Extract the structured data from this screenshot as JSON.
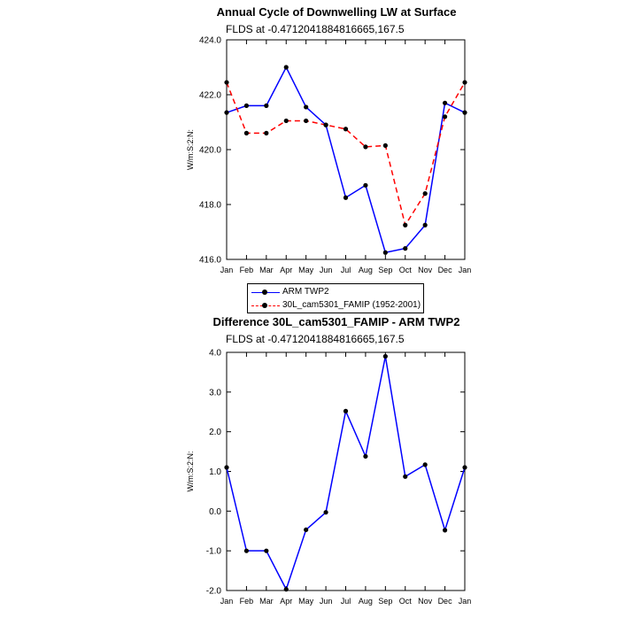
{
  "chart_data": [
    {
      "type": "line",
      "title": "Annual Cycle of Downwelling LW at Surface",
      "subtitle": "FLDS at -0.4712041884816665,167.5",
      "xlabel": "",
      "ylabel": "W/m:S:2:N:",
      "categories": [
        "Jan",
        "Feb",
        "Mar",
        "Apr",
        "May",
        "Jun",
        "Jul",
        "Aug",
        "Sep",
        "Oct",
        "Nov",
        "Dec",
        "Jan"
      ],
      "ylim": [
        416.0,
        424.0
      ],
      "yticks": [
        "416.0",
        "418.0",
        "420.0",
        "422.0",
        "424.0"
      ],
      "grid": false,
      "legend_placement": "bottom",
      "series": [
        {
          "name": "ARM TWP2",
          "color": "#0000ff",
          "style": "solid",
          "values": [
            421.35,
            421.6,
            421.6,
            423.0,
            421.55,
            420.9,
            418.25,
            418.7,
            416.25,
            416.4,
            417.25,
            421.7,
            421.35
          ]
        },
        {
          "name": "30L_cam5301_FAMIP (1952-2001)",
          "color": "#ff0000",
          "style": "dashed",
          "values": [
            422.45,
            420.6,
            420.6,
            421.05,
            421.05,
            420.9,
            420.75,
            420.1,
            420.15,
            417.25,
            418.4,
            421.2,
            422.45
          ]
        }
      ]
    },
    {
      "type": "line",
      "title": "Difference 30L_cam5301_FAMIP - ARM TWP2",
      "subtitle": "FLDS at -0.4712041884816665,167.5",
      "xlabel": "",
      "ylabel": "W/m:S:2:N:",
      "categories": [
        "Jan",
        "Feb",
        "Mar",
        "Apr",
        "May",
        "Jun",
        "Jul",
        "Aug",
        "Sep",
        "Oct",
        "Nov",
        "Dec",
        "Jan"
      ],
      "ylim": [
        -2.0,
        4.0
      ],
      "yticks": [
        "-2.0",
        "-1.0",
        "0.0",
        "1.0",
        "2.0",
        "3.0",
        "4.0"
      ],
      "grid": false,
      "series": [
        {
          "name": "",
          "color": "#0000ff",
          "style": "solid",
          "values": [
            1.1,
            -1.0,
            -1.0,
            -1.97,
            -0.47,
            -0.03,
            2.52,
            1.38,
            3.9,
            0.87,
            1.17,
            -0.48,
            1.1
          ]
        }
      ]
    }
  ]
}
